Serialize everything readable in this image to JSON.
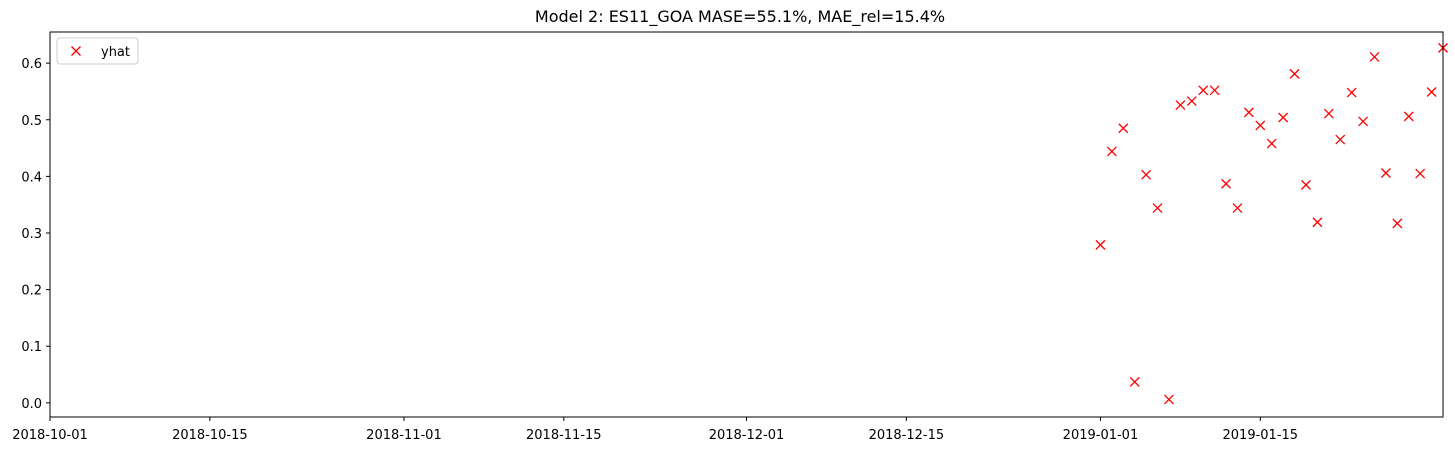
{
  "chart_data": {
    "type": "scatter",
    "title": "Model 2: ES11_GOA MASE=55.1%, MAE_rel=15.4%",
    "xlabel": "",
    "ylabel": "",
    "xlim": [
      "2018-10-01",
      "2019-01-31"
    ],
    "ylim": [
      -0.025,
      0.655
    ],
    "x_tick_labels": [
      "2018-10-01",
      "2018-10-15",
      "2018-11-01",
      "2018-11-15",
      "2018-12-01",
      "2018-12-15",
      "2019-01-01",
      "2019-01-15"
    ],
    "y_tick_labels": [
      "0.0",
      "0.1",
      "0.2",
      "0.3",
      "0.4",
      "0.5",
      "0.6"
    ],
    "grid": false,
    "legend_position": "top-left",
    "series": [
      {
        "name": "yhat",
        "marker": "x",
        "color": "#ff0000",
        "points": [
          {
            "x": "2019-01-01",
            "y": 0.279
          },
          {
            "x": "2019-01-02",
            "y": 0.444
          },
          {
            "x": "2019-01-03",
            "y": 0.485
          },
          {
            "x": "2019-01-04",
            "y": 0.037
          },
          {
            "x": "2019-01-05",
            "y": 0.403
          },
          {
            "x": "2019-01-06",
            "y": 0.344
          },
          {
            "x": "2019-01-07",
            "y": 0.006
          },
          {
            "x": "2019-01-08",
            "y": 0.526
          },
          {
            "x": "2019-01-09",
            "y": 0.533
          },
          {
            "x": "2019-01-10",
            "y": 0.552
          },
          {
            "x": "2019-01-11",
            "y": 0.552
          },
          {
            "x": "2019-01-12",
            "y": 0.387
          },
          {
            "x": "2019-01-13",
            "y": 0.344
          },
          {
            "x": "2019-01-14",
            "y": 0.513
          },
          {
            "x": "2019-01-15",
            "y": 0.49
          },
          {
            "x": "2019-01-16",
            "y": 0.458
          },
          {
            "x": "2019-01-17",
            "y": 0.504
          },
          {
            "x": "2019-01-18",
            "y": 0.581
          },
          {
            "x": "2019-01-19",
            "y": 0.385
          },
          {
            "x": "2019-01-20",
            "y": 0.319
          },
          {
            "x": "2019-01-21",
            "y": 0.511
          },
          {
            "x": "2019-01-22",
            "y": 0.465
          },
          {
            "x": "2019-01-23",
            "y": 0.548
          },
          {
            "x": "2019-01-24",
            "y": 0.497
          },
          {
            "x": "2019-01-25",
            "y": 0.611
          },
          {
            "x": "2019-01-26",
            "y": 0.406
          },
          {
            "x": "2019-01-27",
            "y": 0.317
          },
          {
            "x": "2019-01-28",
            "y": 0.506
          },
          {
            "x": "2019-01-29",
            "y": 0.405
          },
          {
            "x": "2019-01-30",
            "y": 0.549
          },
          {
            "x": "2019-01-31",
            "y": 0.627
          }
        ]
      }
    ]
  }
}
